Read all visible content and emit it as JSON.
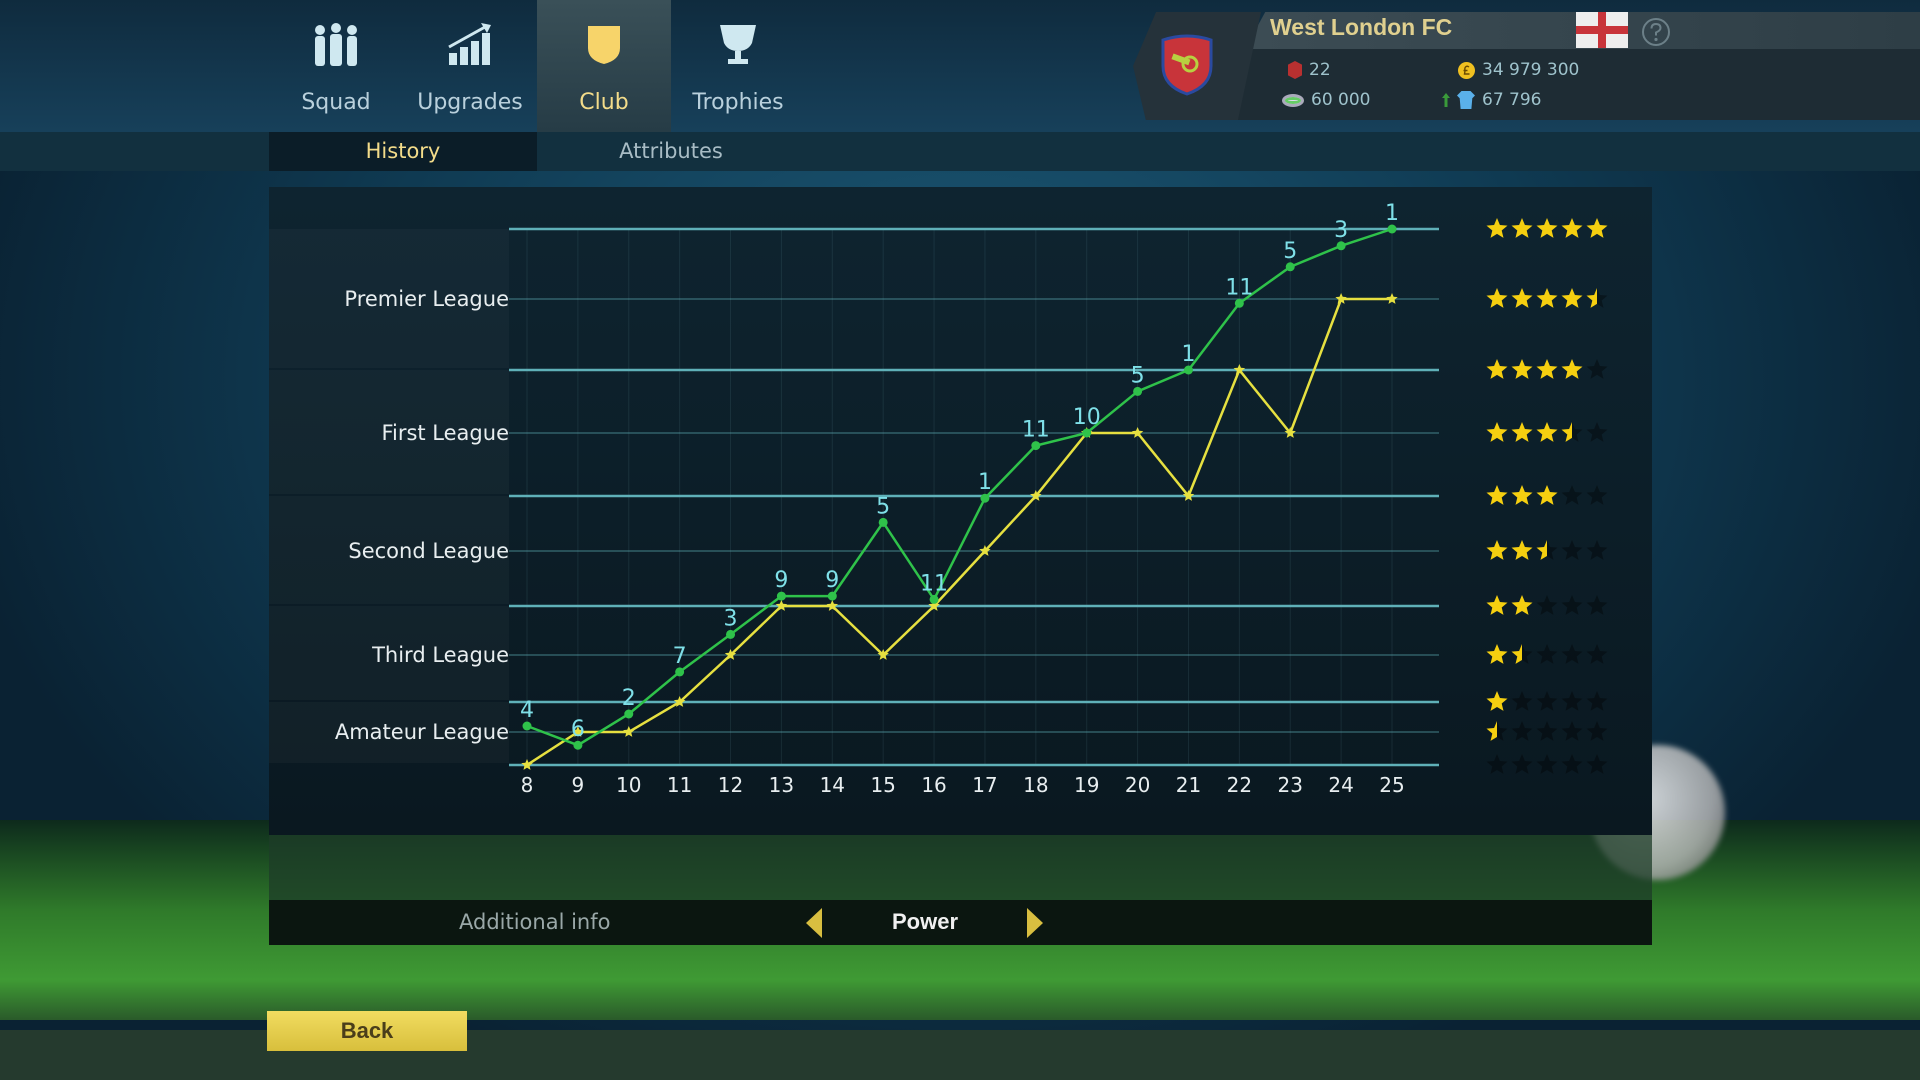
{
  "nav": {
    "tabs": [
      {
        "label": "Squad",
        "icon": "squad-icon"
      },
      {
        "label": "Upgrades",
        "icon": "upgrades-icon"
      },
      {
        "label": "Club",
        "icon": "shield-icon",
        "active": true
      },
      {
        "label": "Trophies",
        "icon": "trophy-icon"
      }
    ],
    "subtabs": [
      {
        "label": "History",
        "active": true
      },
      {
        "label": "Attributes"
      }
    ]
  },
  "club": {
    "name": "West London FC",
    "trophies": "22",
    "money": "34 979 300",
    "stadium": "60 000",
    "fans": "67 796",
    "country_flag": "england-flag",
    "accent": "#e0d08f"
  },
  "leagues": [
    "Premier League",
    "First League",
    "Second League",
    "Third League",
    "Amateur League"
  ],
  "chart_data": {
    "type": "line",
    "x": [
      8,
      9,
      10,
      11,
      12,
      13,
      14,
      15,
      16,
      17,
      18,
      19,
      20,
      21,
      22,
      23,
      24,
      25
    ],
    "ylabel": "",
    "ylim": [
      0,
      5
    ],
    "y_unit": "stars",
    "series": [
      {
        "color": "#e6e040",
        "marker": "star",
        "values": [
          0,
          0.5,
          0.5,
          1,
          1.5,
          2,
          2,
          1.5,
          2,
          2.5,
          3,
          3.5,
          3.5,
          3,
          4,
          3.5,
          4.5,
          4.5
        ]
      },
      {
        "color": "#2fc24a",
        "marker": "dot",
        "values": [
          0.6,
          0.3,
          0.8,
          1.32,
          1.71,
          2.09,
          2.09,
          2.76,
          2.06,
          2.98,
          3.4,
          3.5,
          3.83,
          4.0,
          4.47,
          4.73,
          4.88,
          5.0
        ],
        "labels": [
          "4",
          "6",
          "2",
          "7",
          "3",
          "9",
          "9",
          "5",
          "11",
          "1",
          "11",
          "10",
          "5",
          "1",
          "11",
          "5",
          "3",
          "1"
        ]
      }
    ],
    "star_levels": [
      5,
      4.5,
      4,
      3.5,
      3,
      2.5,
      2,
      1.5,
      1,
      0.5,
      0
    ]
  },
  "footer": {
    "additional_info": "Additional info",
    "selector_value": "Power",
    "back": "Back"
  }
}
